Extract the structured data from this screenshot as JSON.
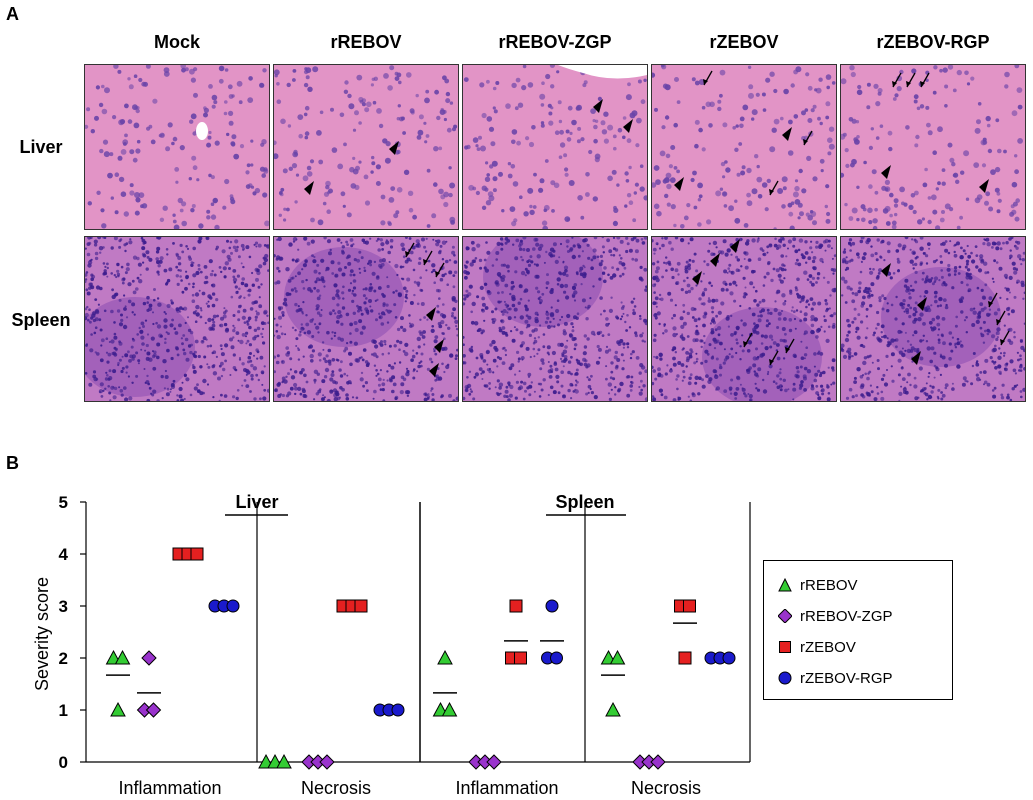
{
  "panel_a_label": "A",
  "panel_b_label": "B",
  "columns": [
    "Mock",
    "rREBOV",
    "rREBOV-ZGP",
    "rZEBOV",
    "rZEBOV-RGP"
  ],
  "rows": [
    "Liver",
    "Spleen"
  ],
  "tile_colors": {
    "liver_base": "#e294c6",
    "spleen_base": "#c07ac4",
    "nuclei_liver": "#6a44a8",
    "nuclei_spleen": "#3d1e8e",
    "vessel": "#ffffff"
  },
  "chart_data": {
    "type": "scatter",
    "ylabel": "Severity score",
    "ylim": [
      0,
      5
    ],
    "yticks": [
      "0",
      "1",
      "2",
      "3",
      "4",
      "5"
    ],
    "groups": [
      {
        "organ": "Liver",
        "label": "Inflammation"
      },
      {
        "organ": "Liver",
        "label": "Necrosis"
      },
      {
        "organ": "Spleen",
        "label": "Inflammation"
      },
      {
        "organ": "Spleen",
        "label": "Necrosis"
      }
    ],
    "organs": [
      "Liver",
      "Spleen"
    ],
    "series": [
      {
        "name": "rREBOV",
        "color": "#33cc33",
        "marker": "triangle",
        "values": [
          [
            2,
            2,
            1
          ],
          [
            0,
            0,
            0
          ],
          [
            2,
            1,
            1
          ],
          [
            2,
            2,
            1
          ]
        ],
        "means": [
          1.67,
          0,
          1.33,
          1.67
        ]
      },
      {
        "name": "rREBOV-ZGP",
        "color": "#9933cc",
        "marker": "diamond",
        "values": [
          [
            2,
            1,
            1
          ],
          [
            0,
            0,
            0
          ],
          [
            0,
            0,
            0
          ],
          [
            0,
            0,
            0
          ]
        ],
        "means": [
          1.33,
          0,
          0,
          0
        ]
      },
      {
        "name": "rZEBOV",
        "color": "#e52020",
        "marker": "square",
        "values": [
          [
            4,
            4,
            4
          ],
          [
            3,
            3,
            3
          ],
          [
            3,
            2,
            2
          ],
          [
            3,
            3,
            2
          ]
        ],
        "means": [
          4,
          3,
          2.33,
          2.67
        ]
      },
      {
        "name": "rZEBOV-RGP",
        "color": "#1a1acc",
        "marker": "circle",
        "values": [
          [
            3,
            3,
            3
          ],
          [
            1,
            1,
            1
          ],
          [
            3,
            2,
            2
          ],
          [
            2,
            2,
            2
          ]
        ],
        "means": [
          3,
          1,
          2.33,
          2
        ]
      }
    ]
  }
}
